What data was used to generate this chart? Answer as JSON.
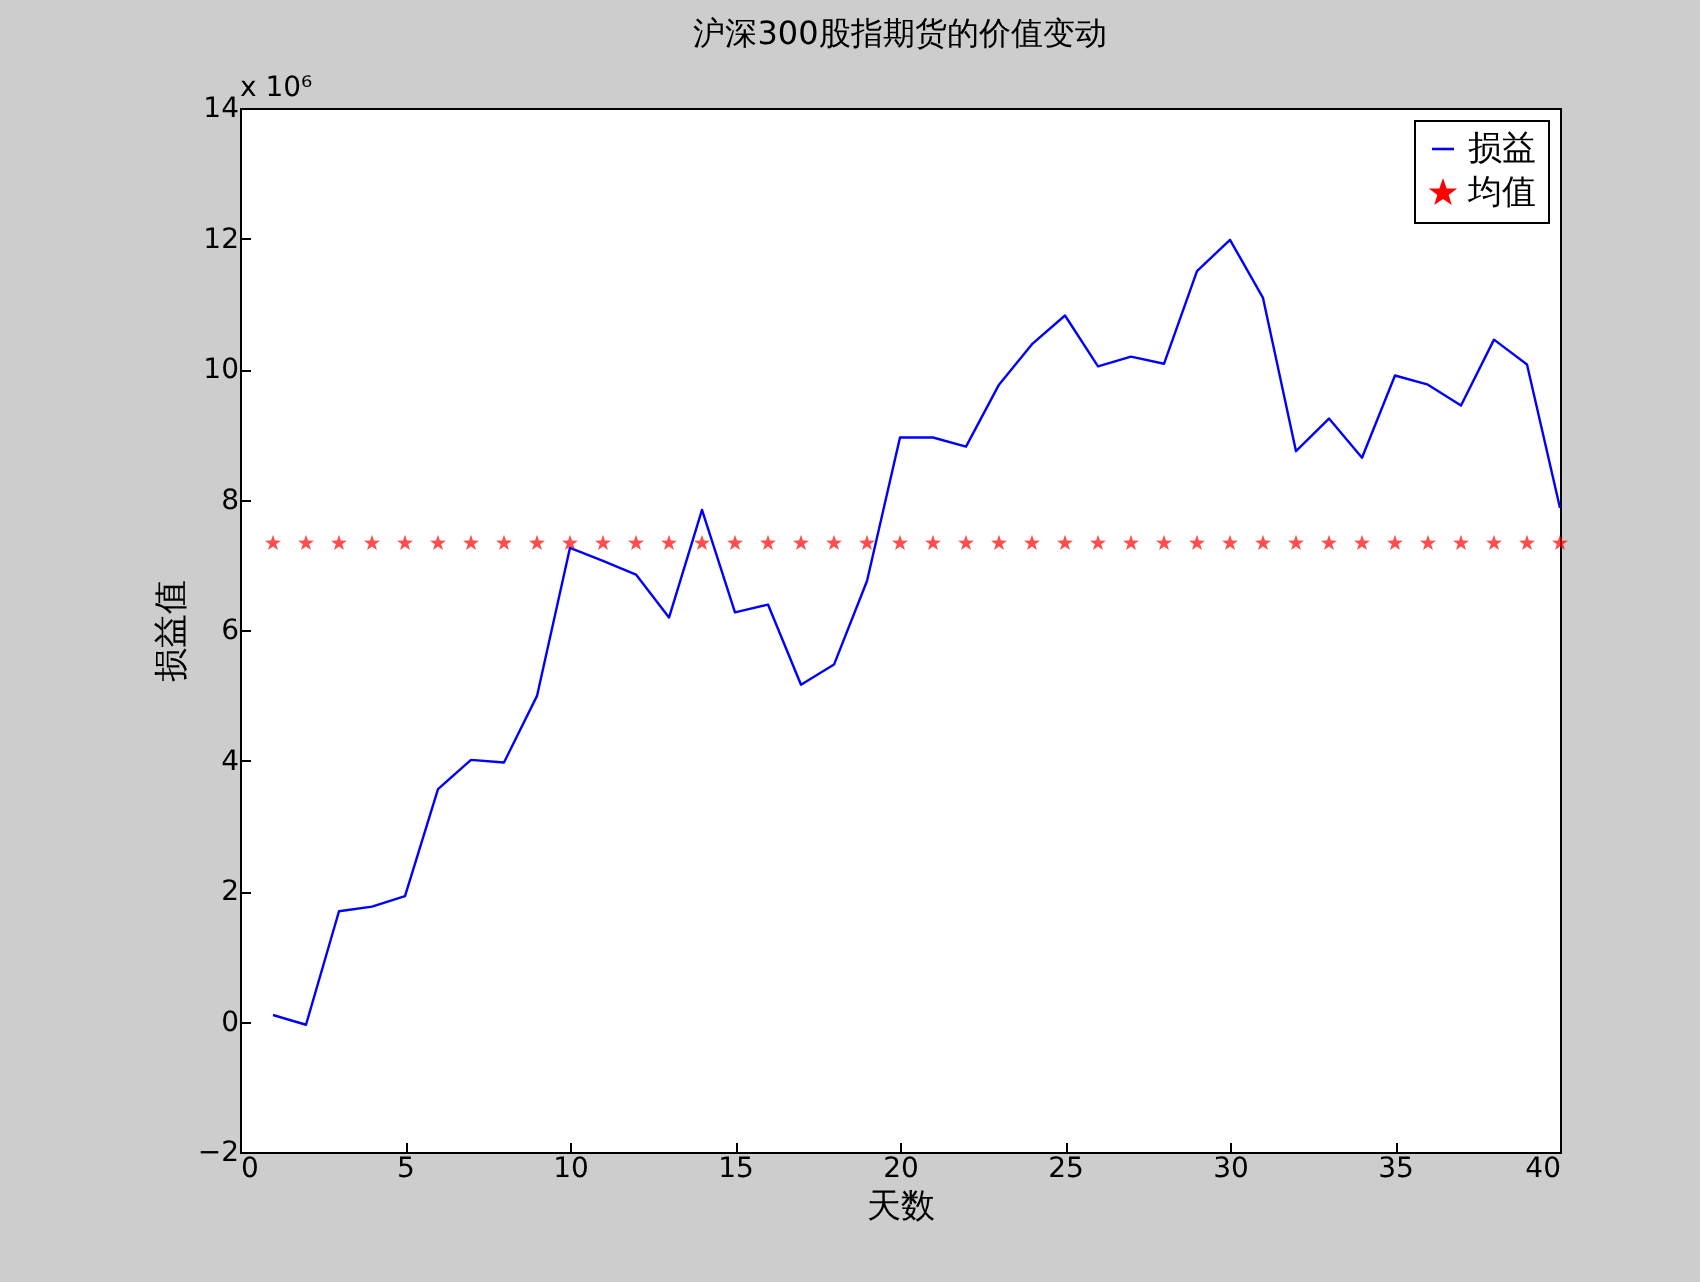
{
  "chart_data": {
    "type": "line",
    "title": "沪深300股指期货的价值变动",
    "xlabel": "天数",
    "ylabel": "损益值",
    "annotations": [
      "x 10⁶"
    ],
    "x": [
      1,
      2,
      3,
      4,
      5,
      6,
      7,
      8,
      9,
      10,
      11,
      12,
      13,
      14,
      15,
      16,
      17,
      18,
      19,
      20,
      21,
      22,
      23,
      24,
      25,
      26,
      27,
      28,
      29,
      30,
      31,
      32,
      33,
      34,
      35,
      36,
      37,
      38,
      39,
      40
    ],
    "series": [
      {
        "name": "损益",
        "color": "#0000ff",
        "line_style": "solid",
        "marker": "none",
        "values": [
          0.1,
          -0.05,
          1.69,
          1.76,
          1.92,
          3.56,
          4.01,
          3.97,
          4.99,
          7.26,
          7.06,
          6.85,
          6.19,
          7.84,
          6.27,
          6.39,
          5.16,
          5.47,
          6.75,
          8.95,
          8.95,
          8.81,
          9.76,
          10.38,
          10.82,
          10.04,
          10.19,
          10.08,
          11.5,
          11.98,
          11.09,
          8.74,
          9.24,
          8.64,
          9.9,
          9.76,
          9.44,
          10.45,
          10.07,
          7.87
        ]
      },
      {
        "name": "均值",
        "type": "scatter",
        "color": "#ff0000",
        "marker": "star",
        "values": [
          7.33,
          7.33,
          7.33,
          7.33,
          7.33,
          7.33,
          7.33,
          7.33,
          7.33,
          7.33,
          7.33,
          7.33,
          7.33,
          7.33,
          7.33,
          7.33,
          7.33,
          7.33,
          7.33,
          7.33,
          7.33,
          7.33,
          7.33,
          7.33,
          7.33,
          7.33,
          7.33,
          7.33,
          7.33,
          7.33,
          7.33,
          7.33,
          7.33,
          7.33,
          7.33,
          7.33,
          7.33,
          7.33,
          7.33,
          7.33
        ]
      }
    ],
    "xlim": [
      0,
      40
    ],
    "xticks": [
      0,
      5,
      10,
      15,
      20,
      25,
      30,
      35,
      40
    ],
    "ylim": [
      -2,
      14
    ],
    "yticks": [
      -2,
      0,
      2,
      4,
      6,
      8,
      10,
      12,
      14
    ],
    "grid": false,
    "legend": "top right"
  }
}
